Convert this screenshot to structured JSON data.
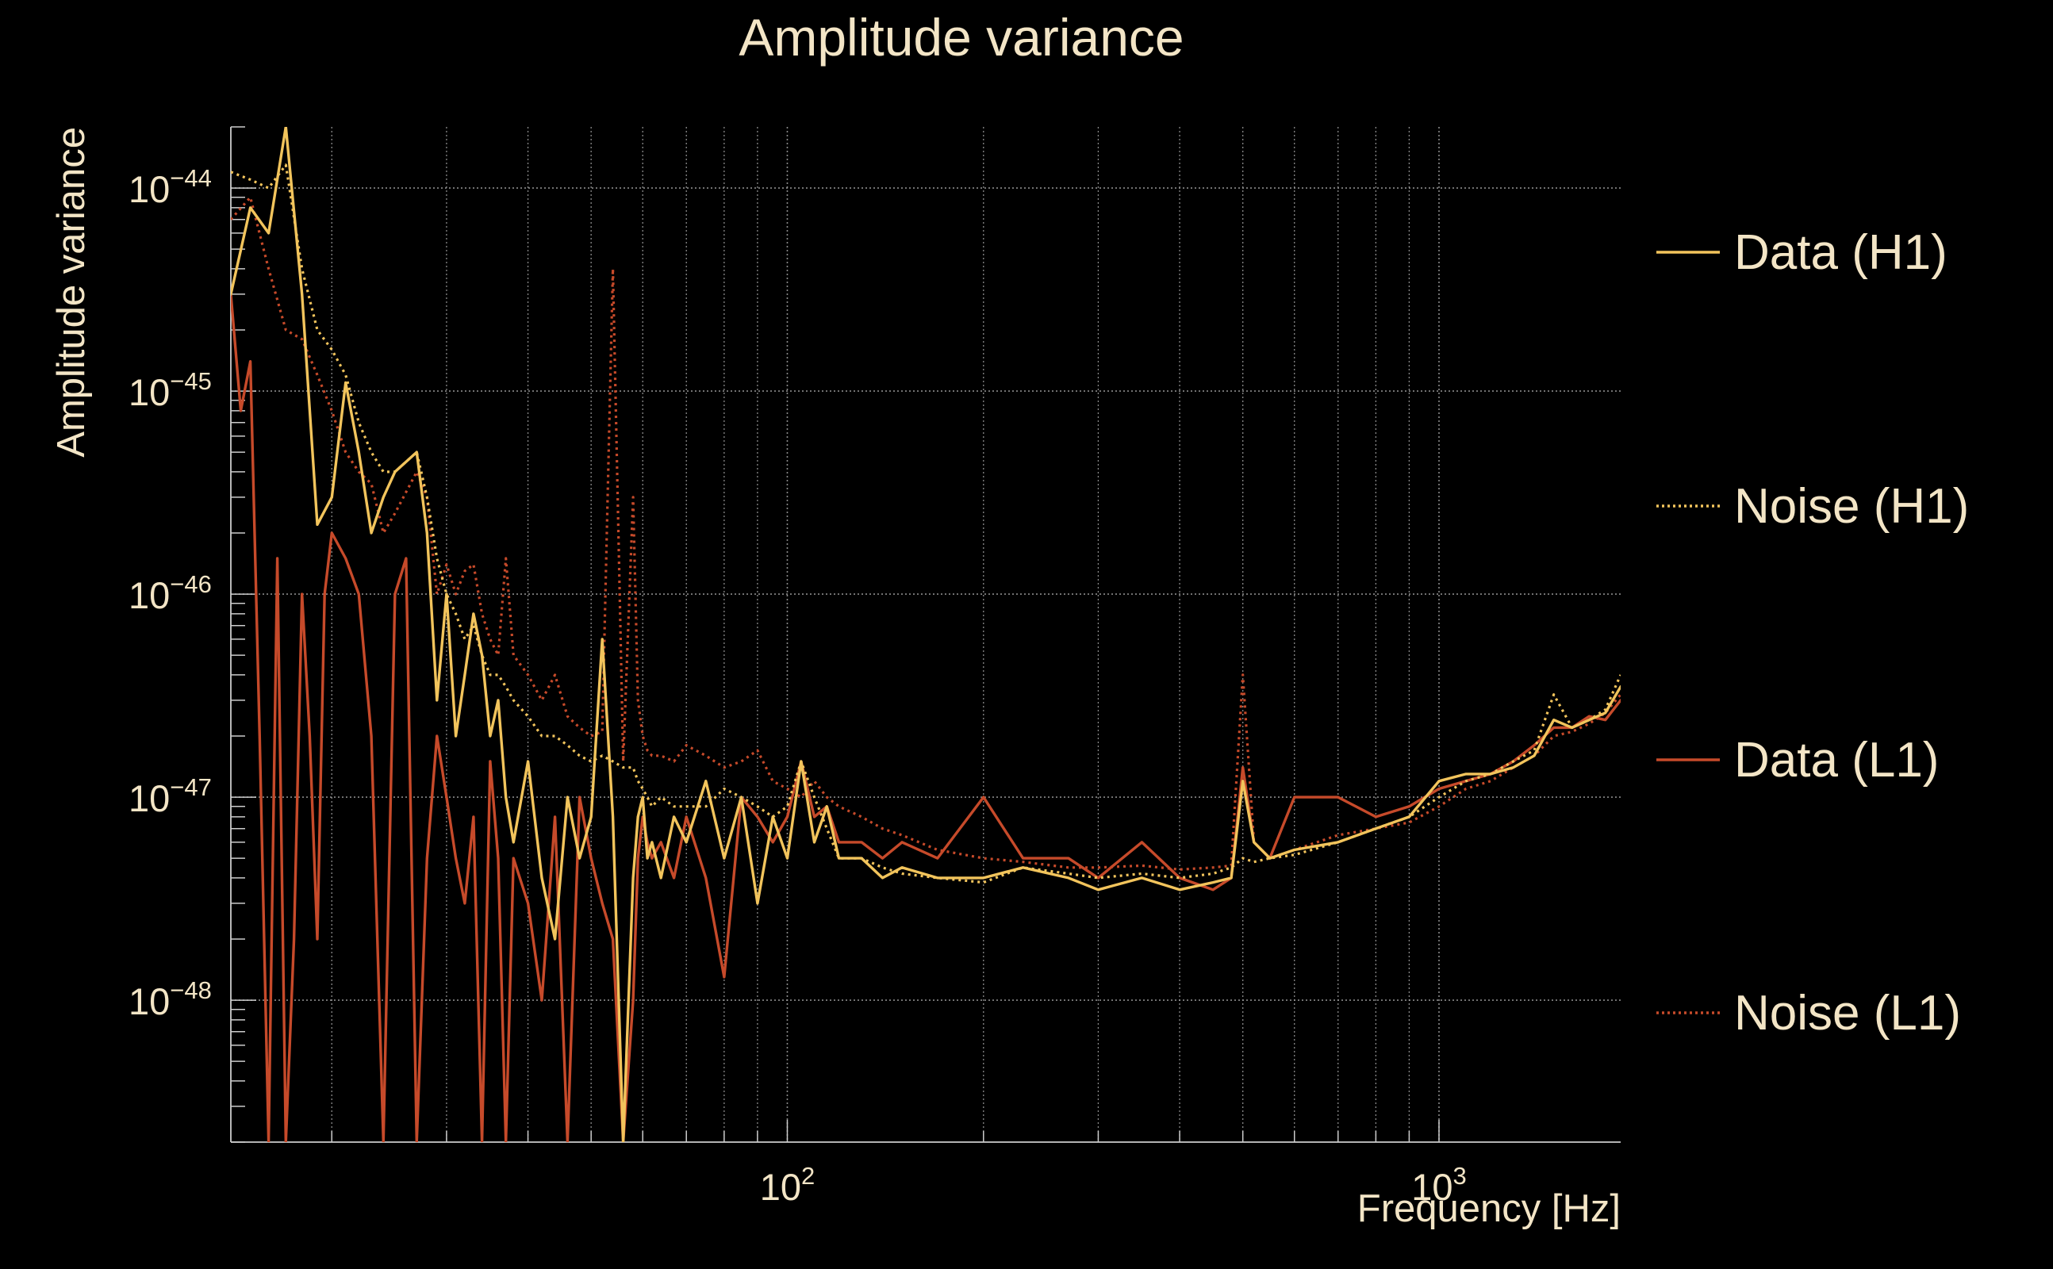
{
  "chart_data": {
    "type": "line",
    "title": "Amplitude variance",
    "xlabel": "Frequency [Hz]",
    "ylabel": "Amplitude variance",
    "x_scale": "log",
    "y_scale": "log",
    "xlim": [
      14,
      1900
    ],
    "ylim": [
      2e-49,
      2e-44
    ],
    "x_ticks": [
      {
        "value": 100,
        "base": "10",
        "exp": "2"
      },
      {
        "value": 1000,
        "base": "10",
        "exp": "3"
      }
    ],
    "y_ticks": [
      {
        "value": 1e-44,
        "base": "10",
        "exp": "−44"
      },
      {
        "value": 1e-45,
        "base": "10",
        "exp": "−45"
      },
      {
        "value": 1e-46,
        "base": "10",
        "exp": "−46"
      },
      {
        "value": 1e-47,
        "base": "10",
        "exp": "−47"
      },
      {
        "value": 1e-48,
        "base": "10",
        "exp": "−48"
      }
    ],
    "grid": true,
    "legend_position": "right",
    "colors": {
      "background": "#000000",
      "text": "#f3e5c6",
      "axis": "#cccccc",
      "grid": "#9a9a9a"
    },
    "series": [
      {
        "name": "Data (H1)",
        "color": "#f2c45c",
        "dash": "solid",
        "x": [
          14,
          15,
          16,
          17,
          18,
          19,
          20,
          21,
          22,
          23,
          24,
          25,
          27,
          28,
          29,
          30,
          31,
          32,
          33,
          34,
          35,
          36,
          37,
          38,
          40,
          42,
          44,
          46,
          48,
          50,
          52,
          54,
          56,
          58,
          59,
          60,
          61,
          62,
          64,
          67,
          70,
          75,
          80,
          85,
          90,
          95,
          100,
          105,
          110,
          115,
          120,
          130,
          140,
          150,
          170,
          200,
          230,
          270,
          300,
          350,
          400,
          450,
          480,
          500,
          520,
          550,
          600,
          700,
          800,
          900,
          1000,
          1100,
          1200,
          1300,
          1400,
          1500,
          1600,
          1700,
          1800,
          1900
        ],
        "y": [
          3e-45,
          8e-45,
          6e-45,
          2e-44,
          3e-45,
          2.2e-46,
          3e-46,
          1.1e-45,
          5e-46,
          2e-46,
          3e-46,
          4e-46,
          5e-46,
          2e-46,
          3e-47,
          1e-46,
          2e-47,
          4e-47,
          8e-47,
          5e-47,
          2e-47,
          3e-47,
          1e-47,
          6e-48,
          1.5e-47,
          4e-48,
          2e-48,
          1e-47,
          5e-48,
          8e-48,
          6e-47,
          8e-48,
          2e-49,
          4e-48,
          8e-48,
          1e-47,
          5e-48,
          6e-48,
          4e-48,
          8e-48,
          6e-48,
          1.2e-47,
          5e-48,
          1e-47,
          3e-48,
          8e-48,
          5e-48,
          1.5e-47,
          6e-48,
          9e-48,
          5e-48,
          5e-48,
          4e-48,
          4.5e-48,
          4e-48,
          4e-48,
          4.5e-48,
          4e-48,
          3.5e-48,
          4e-48,
          3.5e-48,
          3.8e-48,
          4e-48,
          1.2e-47,
          6e-48,
          5e-48,
          5.5e-48,
          6e-48,
          7e-48,
          8e-48,
          1.2e-47,
          1.3e-47,
          1.3e-47,
          1.4e-47,
          1.6e-47,
          2.4e-47,
          2.2e-47,
          2.4e-47,
          2.6e-47,
          3.5e-47
        ]
      },
      {
        "name": "Noise (H1)",
        "color": "#f2c45c",
        "dash": "dotted",
        "x": [
          14,
          15,
          16,
          17,
          18,
          19,
          20,
          21,
          22,
          23,
          24,
          25,
          27,
          28,
          29,
          30,
          31,
          32,
          33,
          34,
          35,
          36,
          37,
          38,
          40,
          42,
          44,
          46,
          48,
          50,
          52,
          54,
          56,
          58,
          59,
          60,
          61,
          62,
          64,
          67,
          70,
          75,
          80,
          85,
          90,
          95,
          100,
          105,
          110,
          115,
          120,
          130,
          140,
          150,
          170,
          200,
          230,
          270,
          300,
          350,
          400,
          450,
          480,
          500,
          520,
          550,
          600,
          700,
          800,
          900,
          1000,
          1100,
          1200,
          1300,
          1400,
          1500,
          1600,
          1700,
          1800,
          1900
        ],
        "y": [
          1.2e-44,
          1.1e-44,
          1e-44,
          1.3e-44,
          4e-45,
          2e-45,
          1.6e-45,
          1.2e-45,
          7e-46,
          5e-46,
          4e-46,
          4e-46,
          5e-46,
          3e-46,
          1.5e-46,
          1e-46,
          8e-47,
          6e-47,
          7e-47,
          5e-47,
          4e-47,
          4e-47,
          3.5e-47,
          3e-47,
          2.5e-47,
          2e-47,
          2e-47,
          1.8e-47,
          1.6e-47,
          1.5e-47,
          1.6e-47,
          1.5e-47,
          1.4e-47,
          1.4e-47,
          1.2e-47,
          1.1e-47,
          1e-47,
          9e-48,
          1e-47,
          9e-48,
          9e-48,
          9e-48,
          1.1e-47,
          1e-47,
          9e-48,
          8e-48,
          9e-48,
          1.5e-47,
          1e-47,
          7e-48,
          5e-48,
          5e-48,
          4.5e-48,
          4.2e-48,
          4e-48,
          3.8e-48,
          4.5e-48,
          4.2e-48,
          4e-48,
          4.2e-48,
          4e-48,
          4.2e-48,
          4.5e-48,
          5e-48,
          4.8e-48,
          5e-48,
          5.2e-48,
          6e-48,
          7e-48,
          8e-48,
          1e-47,
          1.2e-47,
          1.3e-47,
          1.5e-47,
          1.7e-47,
          3.2e-47,
          2.2e-47,
          2.4e-47,
          2.7e-47,
          4e-47
        ]
      },
      {
        "name": "Data (L1)",
        "color": "#c64a2a",
        "dash": "solid",
        "x": [
          14,
          14.5,
          15,
          15.5,
          16,
          16.5,
          17,
          17.5,
          18,
          18.5,
          19,
          19.5,
          20,
          21,
          22,
          23,
          24,
          25,
          26,
          27,
          28,
          29,
          30,
          31,
          32,
          33,
          34,
          35,
          36,
          37,
          38,
          40,
          42,
          44,
          46,
          48,
          50,
          52,
          54,
          56,
          58,
          59,
          60,
          61,
          62,
          64,
          67,
          70,
          75,
          80,
          85,
          90,
          95,
          100,
          105,
          110,
          115,
          120,
          130,
          140,
          150,
          170,
          200,
          230,
          270,
          300,
          350,
          400,
          450,
          480,
          500,
          520,
          550,
          600,
          700,
          800,
          900,
          1000,
          1100,
          1200,
          1300,
          1400,
          1500,
          1600,
          1700,
          1800,
          1900
        ],
        "y": [
          3e-45,
          8e-46,
          1.4e-45,
          2e-47,
          2e-49,
          1.5e-46,
          2e-49,
          2e-48,
          1e-46,
          2e-47,
          2e-48,
          1e-46,
          2e-46,
          1.5e-46,
          1e-46,
          2e-47,
          2e-49,
          1e-46,
          1.5e-46,
          2e-49,
          5e-48,
          2e-47,
          1e-47,
          5e-48,
          3e-48,
          8e-48,
          2e-49,
          1.5e-47,
          5e-48,
          2e-49,
          5e-48,
          3e-48,
          1e-48,
          8e-48,
          2e-49,
          1e-47,
          5e-48,
          3e-48,
          2e-48,
          2e-49,
          1e-48,
          5e-48,
          8e-48,
          6e-48,
          5e-48,
          6e-48,
          4e-48,
          8e-48,
          4e-48,
          1.3e-48,
          1e-47,
          8e-48,
          6e-48,
          8e-48,
          1.5e-47,
          8e-48,
          9e-48,
          6e-48,
          6e-48,
          5e-48,
          6e-48,
          5e-48,
          1e-47,
          5e-48,
          5e-48,
          4e-48,
          6e-48,
          4e-48,
          3.5e-48,
          4e-48,
          1.4e-47,
          6e-48,
          5e-48,
          1e-47,
          1e-47,
          8e-48,
          9e-48,
          1.1e-47,
          1.2e-47,
          1.3e-47,
          1.5e-47,
          1.8e-47,
          2.2e-47,
          2.2e-47,
          2.5e-47,
          2.4e-47,
          3e-47
        ]
      },
      {
        "name": "Noise (L1)",
        "color": "#c64a2a",
        "dash": "dotted",
        "x": [
          14,
          15,
          16,
          17,
          18,
          19,
          20,
          21,
          22,
          23,
          24,
          25,
          27,
          28,
          29,
          30,
          31,
          32,
          33,
          34,
          35,
          36,
          37,
          38,
          40,
          42,
          44,
          46,
          48,
          50,
          52,
          54,
          56,
          58,
          59,
          60,
          61,
          62,
          64,
          67,
          70,
          75,
          80,
          85,
          90,
          95,
          100,
          105,
          110,
          115,
          120,
          130,
          140,
          150,
          170,
          200,
          230,
          270,
          300,
          350,
          400,
          450,
          480,
          500,
          520,
          550,
          600,
          700,
          800,
          900,
          1000,
          1100,
          1200,
          1300,
          1400,
          1500,
          1600,
          1700,
          1800,
          1900
        ],
        "y": [
          7e-45,
          9e-45,
          4e-45,
          2e-45,
          1.8e-45,
          1.2e-45,
          8e-46,
          5e-46,
          4e-46,
          3.5e-46,
          2e-46,
          2.5e-46,
          4e-46,
          3e-46,
          1e-46,
          1.4e-46,
          1e-46,
          1.3e-46,
          1.4e-46,
          8e-47,
          6e-47,
          5e-47,
          1.5e-46,
          5e-47,
          4e-47,
          3e-47,
          4e-47,
          2.5e-47,
          2.2e-47,
          2e-47,
          2.1e-47,
          4e-45,
          1.5e-47,
          3e-46,
          3e-47,
          2e-47,
          1.7e-47,
          1.6e-47,
          1.6e-47,
          1.5e-47,
          1.8e-47,
          1.6e-47,
          1.4e-47,
          1.5e-47,
          1.7e-47,
          1.2e-47,
          1.1e-47,
          1e-47,
          1.2e-47,
          1e-47,
          9e-48,
          8e-48,
          7e-48,
          6.5e-48,
          5.5e-48,
          5e-48,
          4.8e-48,
          4.5e-48,
          4.5e-48,
          4.6e-48,
          4.4e-48,
          4.5e-48,
          4.6e-48,
          4e-47,
          6e-48,
          5e-48,
          5.5e-48,
          6.5e-48,
          7e-48,
          7.5e-48,
          9e-48,
          1.1e-47,
          1.2e-47,
          1.4e-47,
          1.6e-47,
          2e-47,
          2.1e-47,
          2.3e-47,
          2.6e-47,
          3.2e-47
        ]
      }
    ]
  }
}
